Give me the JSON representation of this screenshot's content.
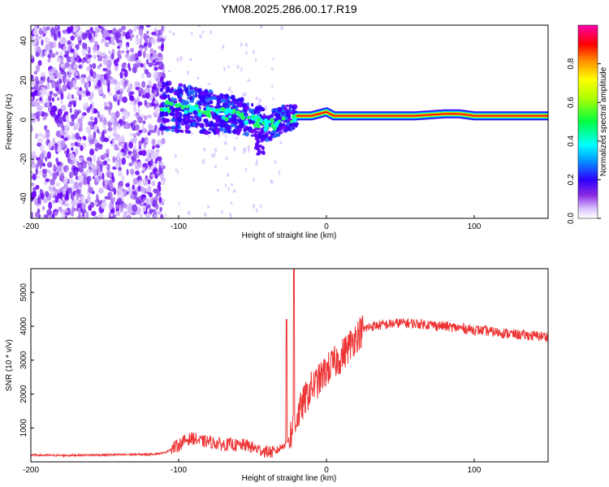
{
  "title": "YM08.2025.286.00.17.R19",
  "chart_data": [
    {
      "type": "heatmap",
      "name": "spectrogram",
      "xlabel": "Height of straight line (km)",
      "ylabel": "Frequency (Hz)",
      "xlim": [
        -200,
        150
      ],
      "ylim": [
        -50,
        48
      ],
      "xticks": [
        -200,
        -100,
        0,
        100
      ],
      "yticks": [
        -40,
        -20,
        0,
        20,
        40
      ],
      "colorbar": {
        "label": "Normalized spectral amplitude",
        "range": [
          0.0,
          1.0
        ],
        "ticks": [
          0.0,
          0.2,
          0.4,
          0.6,
          0.8
        ]
      },
      "ridge": {
        "description": "dominant frequency track",
        "x": [
          -112,
          -100,
          -90,
          -80,
          -70,
          -60,
          -50,
          -45,
          -40,
          -35,
          -30,
          -25,
          -20,
          -15,
          -10,
          -5,
          0,
          5,
          10,
          20,
          40,
          60,
          80,
          90,
          100,
          120,
          150
        ],
        "y": [
          7,
          6,
          5,
          4,
          3,
          2,
          0,
          -1,
          -3,
          -2,
          0,
          1,
          2,
          2,
          2,
          3,
          4,
          2,
          2,
          2,
          2,
          2,
          3,
          3,
          2,
          2,
          2
        ]
      }
    },
    {
      "type": "line",
      "name": "snr",
      "xlabel": "Height of straight line (km)",
      "ylabel": "SNR (10 * v/v)",
      "xlim": [
        -200,
        150
      ],
      "ylim": [
        0,
        5700
      ],
      "xticks": [
        -200,
        -100,
        0,
        100
      ],
      "yticks": [
        1000,
        2000,
        3000,
        4000,
        5000
      ],
      "color": "#ee3333",
      "series": [
        {
          "name": "SNR",
          "x": [
            -200,
            -180,
            -160,
            -140,
            -120,
            -110,
            -100,
            -95,
            -90,
            -85,
            -80,
            -75,
            -70,
            -65,
            -60,
            -55,
            -50,
            -45,
            -40,
            -35,
            -30,
            -25,
            -22,
            -20,
            -15,
            -10,
            -5,
            0,
            5,
            10,
            15,
            20,
            25,
            30,
            40,
            50,
            60,
            70,
            80,
            90,
            100,
            110,
            120,
            130,
            140,
            150
          ],
          "y": [
            200,
            190,
            200,
            210,
            220,
            260,
            500,
            650,
            700,
            600,
            600,
            550,
            500,
            520,
            480,
            500,
            420,
            350,
            300,
            280,
            450,
            700,
            1100,
            1300,
            1800,
            2200,
            2400,
            2700,
            2900,
            3100,
            3400,
            3700,
            3900,
            4000,
            4050,
            4100,
            4080,
            4050,
            4000,
            3950,
            3900,
            3850,
            3800,
            3750,
            3720,
            3700
          ]
        }
      ],
      "annotations": [
        {
          "x": -22,
          "y": 5700,
          "note": "spike"
        },
        {
          "x": -27,
          "y": 4200,
          "note": "spike"
        }
      ]
    }
  ]
}
